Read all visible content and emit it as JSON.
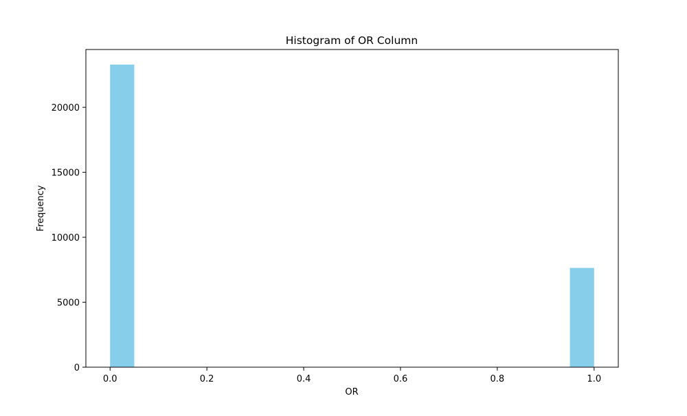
{
  "chart_data": {
    "type": "bar",
    "title": "Histogram of OR Column",
    "xlabel": "OR",
    "ylabel": "Frequency",
    "xlim": [
      -0.05,
      1.05
    ],
    "ylim": [
      0,
      24450
    ],
    "grid": false,
    "bar_color": "#87CEEB",
    "bins": [
      {
        "x_start": 0.0,
        "x_end": 0.05,
        "value": 23290
      },
      {
        "x_start": 0.95,
        "x_end": 1.0,
        "value": 7640
      }
    ],
    "x_ticks": [
      0.0,
      0.2,
      0.4,
      0.6,
      0.8,
      1.0
    ],
    "x_tick_labels": [
      "0.0",
      "0.2",
      "0.4",
      "0.6",
      "0.8",
      "1.0"
    ],
    "y_ticks": [
      0,
      5000,
      10000,
      15000,
      20000
    ],
    "y_tick_labels": [
      "0",
      "5000",
      "10000",
      "15000",
      "20000"
    ]
  }
}
